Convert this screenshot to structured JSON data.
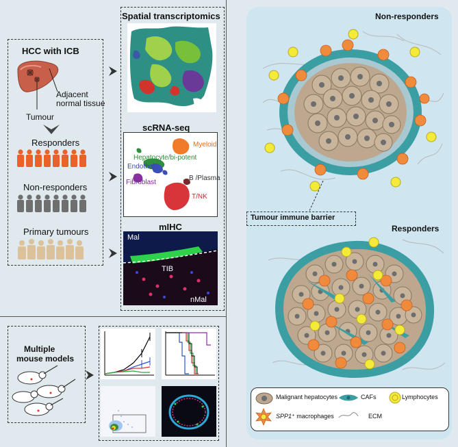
{
  "left": {
    "hcc_title": "HCC with ICB",
    "adjacent_label": "Adjacent normal tissue",
    "adjacent_line1": "Adjacent",
    "adjacent_line2": "normal tissue",
    "tumour_label": "Tumour",
    "responders": "Responders",
    "non_responders": "Non-responders",
    "primary_tumours": "Primary tumours",
    "colors": {
      "responders": "#e8622a",
      "non_responders": "#6f6f6f",
      "primary": "#dcc29a"
    }
  },
  "middle": {
    "spatial_title": "Spatial transcriptomics",
    "scrna_title": "scRNA-seq",
    "clusters": {
      "myeloid": "Myeloid",
      "hepatocyte": "Hepatocyte/bi-potent",
      "endothelial": "Endothel",
      "fibroblast": "Fibroblast",
      "b_plasma": "B /Plasma",
      "tnk": "T/NK"
    },
    "mihc_title": "mIHC",
    "mal": "Mal",
    "tib": "TIB",
    "nmal": "nMal"
  },
  "bottom": {
    "mouse_title_line1": "Multiple",
    "mouse_title_line2": "mouse models"
  },
  "right": {
    "non_responders_title": "Non-responders",
    "responders_title": "Responders",
    "barrier_label": "Tumour immune barrier",
    "legend": {
      "malignant": "Malignant hepatocytes",
      "cafs": "CAFs",
      "lymphocytes": "Lymphocytes",
      "macrophages_gene": "SPP1",
      "macrophages_rest": "⁺ macrophages",
      "ecm": "ECM"
    },
    "colors": {
      "panel": "#cfe6f1",
      "hepatocyte": "#bda78f",
      "caf": "#3a9ea3",
      "lymph": "#f3ea3a",
      "macro": "#f08a3c"
    }
  }
}
